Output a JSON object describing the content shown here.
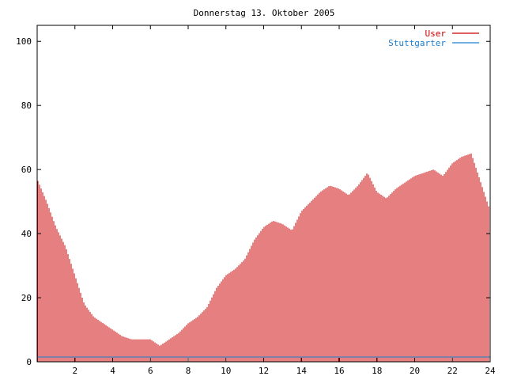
{
  "title": "Donnerstag 13. Oktober 2005",
  "legend": [
    {
      "label": "User",
      "color": "#cc0000"
    },
    {
      "label": "Stuttgarter",
      "color": "#1a7fd0"
    }
  ],
  "colors": {
    "user": "#cc0000",
    "stuttgarter": "#1a7fd0",
    "axis": "#000000"
  },
  "chart_data": {
    "type": "bar",
    "title": "Donnerstag 13. Oktober 2005",
    "xlabel": "",
    "ylabel": "",
    "xlim": [
      0,
      24
    ],
    "ylim": [
      0,
      105
    ],
    "xticks": [
      2,
      4,
      6,
      8,
      10,
      12,
      14,
      16,
      18,
      20,
      22,
      24
    ],
    "yticks": [
      0,
      20,
      40,
      60,
      80,
      100
    ],
    "grid": false,
    "legend_position": "top-right",
    "series": [
      {
        "name": "User",
        "color": "#cc0000",
        "x": [
          0,
          0.5,
          1,
          1.5,
          2,
          2.5,
          3,
          3.5,
          4,
          4.5,
          5,
          5.5,
          6,
          6.5,
          7,
          7.5,
          8,
          8.5,
          9,
          9.5,
          10,
          10.5,
          11,
          11.5,
          12,
          12.5,
          13,
          13.5,
          14,
          14.5,
          15,
          15.5,
          16,
          16.5,
          17,
          17.5,
          18,
          18.5,
          19,
          19.5,
          20,
          20.5,
          21,
          21.5,
          22,
          22.5,
          23,
          23.5,
          24
        ],
        "values": [
          57,
          50,
          42,
          36,
          27,
          18,
          14,
          12,
          10,
          8,
          7,
          7,
          7,
          5,
          7,
          9,
          12,
          14,
          17,
          23,
          27,
          29,
          32,
          38,
          42,
          44,
          43,
          41,
          47,
          50,
          53,
          55,
          54,
          52,
          55,
          59,
          53,
          51,
          54,
          56,
          58,
          59,
          60,
          58,
          62,
          64,
          65,
          56,
          47
        ]
      },
      {
        "name": "Stuttgarter",
        "color": "#1a7fd0",
        "x": [
          0,
          24
        ],
        "values": [
          1,
          1
        ]
      }
    ]
  }
}
